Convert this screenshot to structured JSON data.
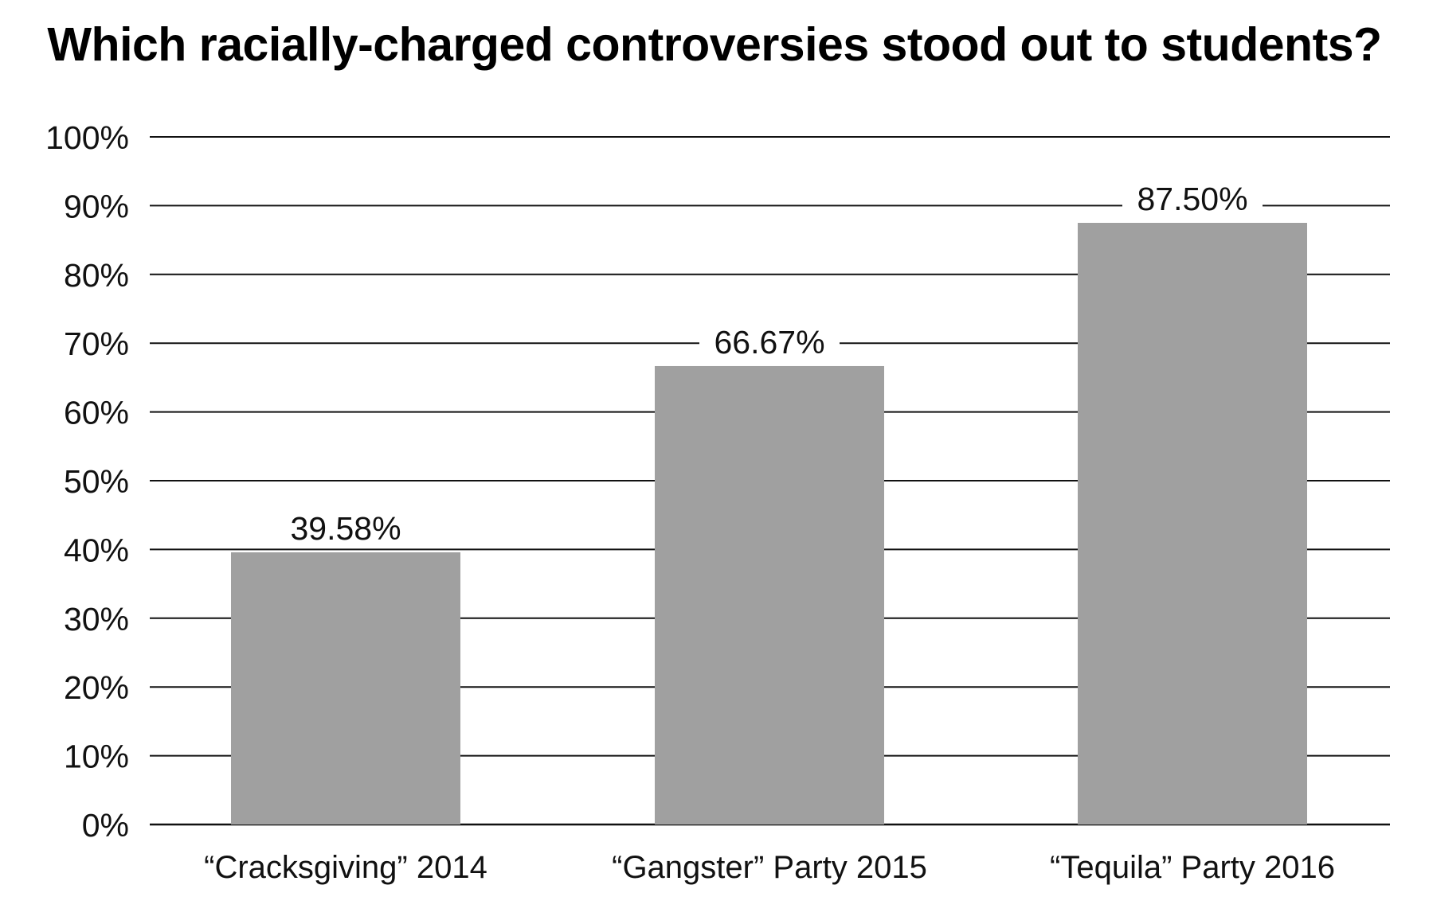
{
  "chart_data": {
    "type": "bar",
    "title": "Which racially-charged controversies stood out to students?",
    "categories": [
      "“Cracksgiving” 2014",
      "“Gangster” Party 2015",
      "“Tequila” Party 2016"
    ],
    "values": [
      39.58,
      66.67,
      87.5
    ],
    "data_labels": [
      "39.58%",
      "66.67%",
      "87.50%"
    ],
    "y_ticks": [
      "0%",
      "10%",
      "20%",
      "30%",
      "40%",
      "50%",
      "60%",
      "70%",
      "80%",
      "90%",
      "100%"
    ],
    "xlabel": "",
    "ylabel": "",
    "ylim": [
      0,
      100
    ],
    "grid": true,
    "legend": "none",
    "colors": {
      "bar": "#a0a0a0",
      "grid": "#111111",
      "text": "#111111"
    }
  }
}
